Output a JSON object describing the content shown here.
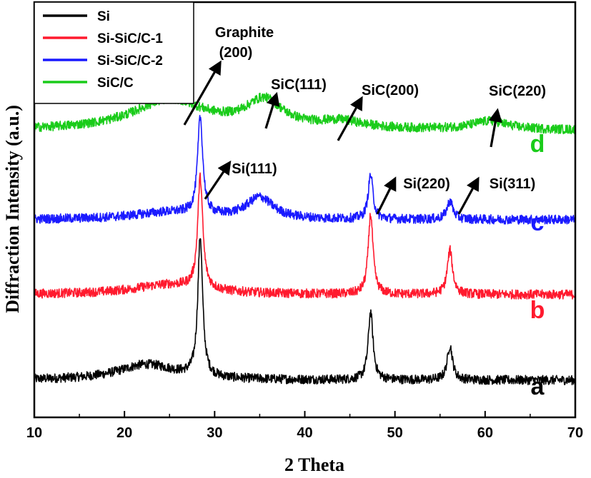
{
  "chart_data": {
    "type": "line",
    "xlabel": "2 Theta",
    "ylabel": "Diffraction Intensity (a.u.)",
    "xlim": [
      10,
      70
    ],
    "x_ticks": [
      "10",
      "20",
      "30",
      "40",
      "50",
      "60",
      "70"
    ],
    "y_ticks_labeled": false,
    "grid": false,
    "legend_position": "top-left",
    "series": [
      {
        "name": "Si",
        "letter": "a",
        "color": "#000000",
        "peaks": [
          {
            "two_theta": 28.4,
            "intensity": 195,
            "width": 0.32
          },
          {
            "two_theta": 47.3,
            "intensity": 95,
            "width": 0.32
          },
          {
            "two_theta": 56.1,
            "intensity": 48,
            "width": 0.35
          },
          {
            "two_theta": 22.5,
            "intensity": 22,
            "width": 4.0
          }
        ],
        "baseline_offset": 15
      },
      {
        "name": "Si-SiC/C-1",
        "letter": "b",
        "color": "#ff1a2e",
        "peaks": [
          {
            "two_theta": 28.4,
            "intensity": 155,
            "width": 0.34
          },
          {
            "two_theta": 47.3,
            "intensity": 112,
            "width": 0.32
          },
          {
            "two_theta": 56.1,
            "intensity": 62,
            "width": 0.35
          },
          {
            "two_theta": 25.0,
            "intensity": 14,
            "width": 5.0
          }
        ],
        "baseline_offset": 135
      },
      {
        "name": "Si-SiC/C-2",
        "letter": "c",
        "color": "#1a1aff",
        "peaks": [
          {
            "two_theta": 28.4,
            "intensity": 135,
            "width": 0.35
          },
          {
            "two_theta": 35.0,
            "intensity": 30,
            "width": 1.8
          },
          {
            "two_theta": 47.3,
            "intensity": 62,
            "width": 0.32
          },
          {
            "two_theta": 56.1,
            "intensity": 26,
            "width": 0.4
          },
          {
            "two_theta": 25.0,
            "intensity": 10,
            "width": 5.0
          }
        ],
        "baseline_offset": 240
      },
      {
        "name": "SiC/C",
        "letter": "d",
        "color": "#1acc1a",
        "peaks": [
          {
            "two_theta": 25.0,
            "intensity": 42,
            "width": 5.0
          },
          {
            "two_theta": 35.5,
            "intensity": 38,
            "width": 2.5
          },
          {
            "two_theta": 44.0,
            "intensity": 10,
            "width": 3.0
          },
          {
            "two_theta": 60.5,
            "intensity": 12,
            "width": 2.5
          }
        ],
        "baseline_offset": 365
      }
    ],
    "annotations": [
      {
        "label_line1": "Graphite",
        "label_line2": "(200)",
        "at_two_theta": 26.5,
        "curve": "d"
      },
      {
        "label_line1": "SiC(111)",
        "label_line2": "",
        "at_two_theta": 35.5,
        "curve": "d"
      },
      {
        "label_line1": "SiC(200)",
        "label_line2": "",
        "at_two_theta": 43.5,
        "curve": "d"
      },
      {
        "label_line1": "SiC(220)",
        "label_line2": "",
        "at_two_theta": 60.5,
        "curve": "d"
      },
      {
        "label_line1": "Si(111)",
        "label_line2": "",
        "at_two_theta": 29.0,
        "curve": "c"
      },
      {
        "label_line1": "Si(220)",
        "label_line2": "",
        "at_two_theta": 47.8,
        "curve": "c"
      },
      {
        "label_line1": "Si(311)",
        "label_line2": "",
        "at_two_theta": 56.5,
        "curve": "c"
      }
    ]
  }
}
